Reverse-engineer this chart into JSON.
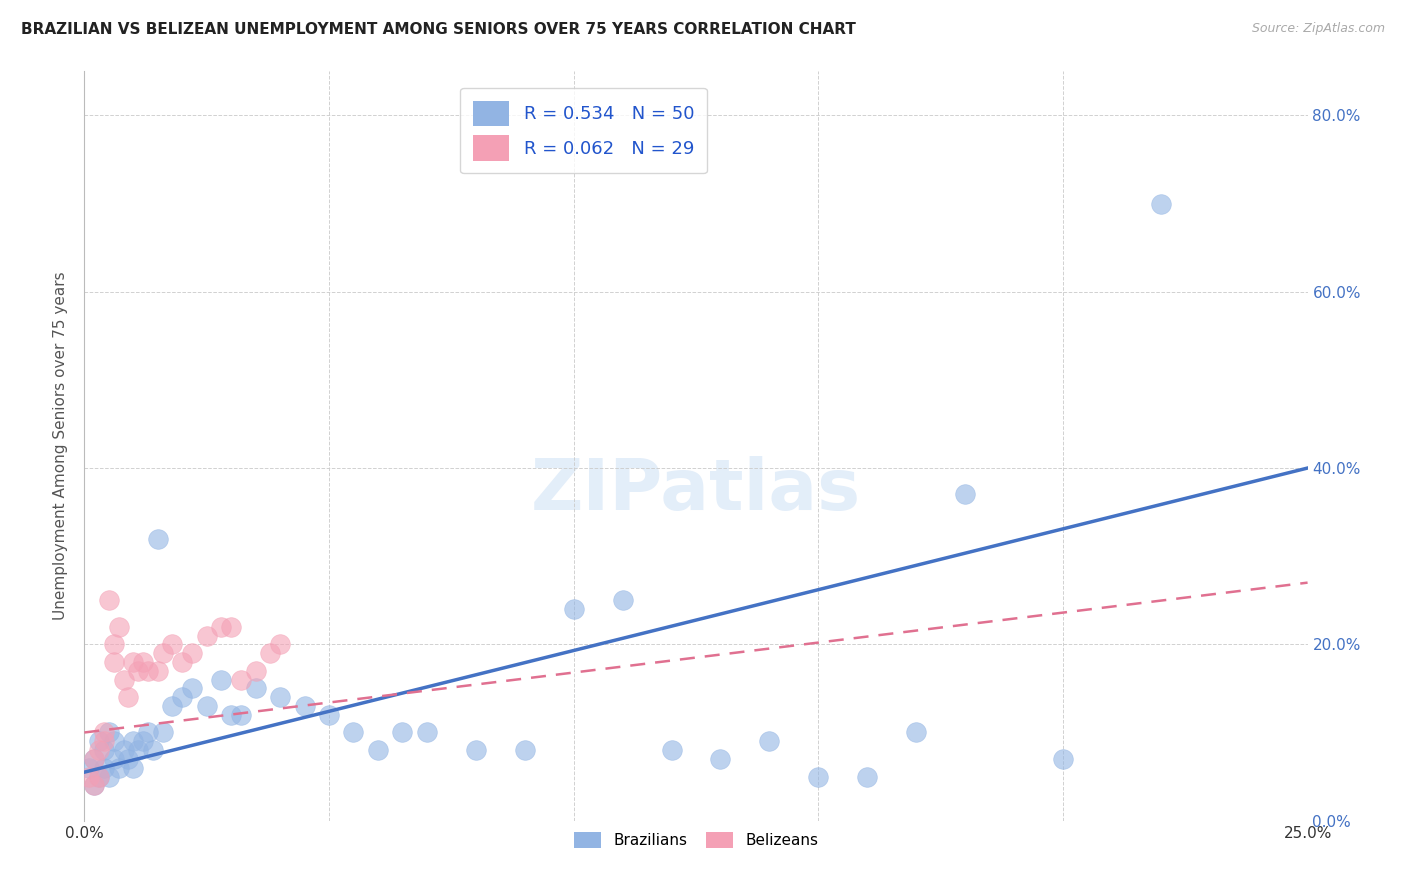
{
  "title": "BRAZILIAN VS BELIZEAN UNEMPLOYMENT AMONG SENIORS OVER 75 YEARS CORRELATION CHART",
  "source": "Source: ZipAtlas.com",
  "ylabel": "Unemployment Among Seniors over 75 years",
  "xlim": [
    0.0,
    0.25
  ],
  "ylim": [
    0.0,
    0.85
  ],
  "yticks_right": [
    0.0,
    0.2,
    0.4,
    0.6,
    0.8
  ],
  "ytick_labels_right": [
    "0.0%",
    "20.0%",
    "40.0%",
    "60.0%",
    "80.0%"
  ],
  "brazilian_R": 0.534,
  "brazilian_N": 50,
  "belizean_R": 0.062,
  "belizean_N": 29,
  "brazilian_color": "#92B4E3",
  "belizean_color": "#F4A0B5",
  "trendline_brazilian_color": "#4472C4",
  "trendline_belizean_color": "#E07090",
  "background_color": "#ffffff",
  "brazilian_x": [
    0.001,
    0.002,
    0.002,
    0.003,
    0.003,
    0.004,
    0.004,
    0.005,
    0.005,
    0.006,
    0.006,
    0.007,
    0.008,
    0.009,
    0.01,
    0.01,
    0.011,
    0.012,
    0.013,
    0.014,
    0.015,
    0.016,
    0.018,
    0.02,
    0.022,
    0.025,
    0.028,
    0.03,
    0.032,
    0.035,
    0.04,
    0.045,
    0.05,
    0.055,
    0.06,
    0.065,
    0.07,
    0.08,
    0.09,
    0.1,
    0.11,
    0.12,
    0.13,
    0.14,
    0.15,
    0.16,
    0.17,
    0.18,
    0.2,
    0.22
  ],
  "brazilian_y": [
    0.06,
    0.04,
    0.07,
    0.05,
    0.09,
    0.06,
    0.08,
    0.05,
    0.1,
    0.07,
    0.09,
    0.06,
    0.08,
    0.07,
    0.09,
    0.06,
    0.08,
    0.09,
    0.1,
    0.08,
    0.32,
    0.1,
    0.13,
    0.14,
    0.15,
    0.13,
    0.16,
    0.12,
    0.12,
    0.15,
    0.14,
    0.13,
    0.12,
    0.1,
    0.08,
    0.1,
    0.1,
    0.08,
    0.08,
    0.24,
    0.25,
    0.08,
    0.07,
    0.09,
    0.05,
    0.05,
    0.1,
    0.37,
    0.07,
    0.7
  ],
  "belizean_x": [
    0.001,
    0.002,
    0.002,
    0.003,
    0.003,
    0.004,
    0.004,
    0.005,
    0.006,
    0.006,
    0.007,
    0.008,
    0.009,
    0.01,
    0.011,
    0.012,
    0.013,
    0.015,
    0.016,
    0.018,
    0.02,
    0.022,
    0.025,
    0.028,
    0.03,
    0.032,
    0.035,
    0.038,
    0.04
  ],
  "belizean_y": [
    0.05,
    0.07,
    0.04,
    0.08,
    0.05,
    0.1,
    0.09,
    0.25,
    0.18,
    0.2,
    0.22,
    0.16,
    0.14,
    0.18,
    0.17,
    0.18,
    0.17,
    0.17,
    0.19,
    0.2,
    0.18,
    0.19,
    0.21,
    0.22,
    0.22,
    0.16,
    0.17,
    0.19,
    0.2
  ]
}
